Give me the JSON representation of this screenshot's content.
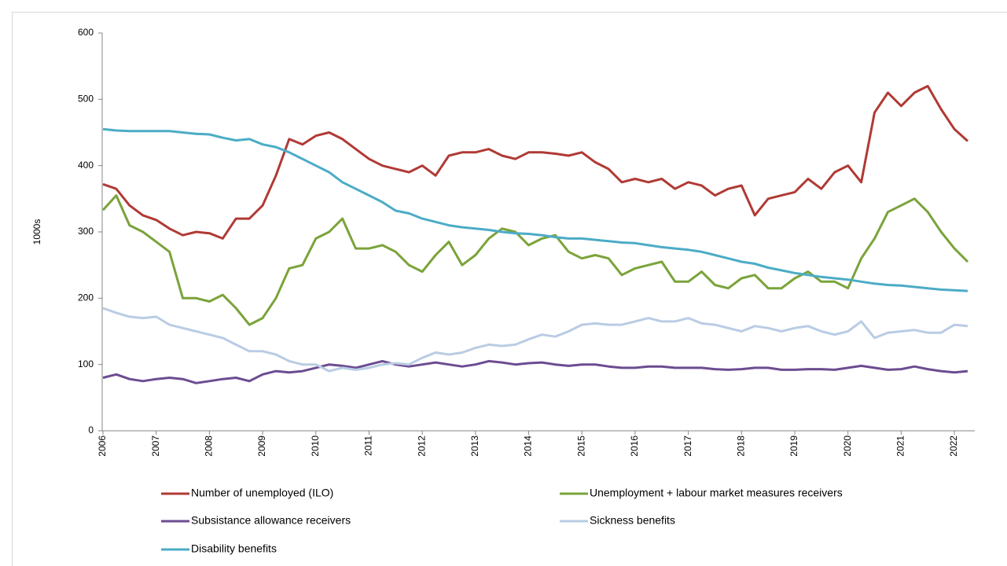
{
  "chart_data": {
    "type": "line",
    "y_label": "1000s",
    "categories": [
      "2006",
      null,
      null,
      null,
      "2007",
      null,
      null,
      null,
      "2008",
      null,
      null,
      null,
      "2009",
      null,
      null,
      null,
      "2010",
      null,
      null,
      null,
      "2011",
      null,
      null,
      null,
      "2012",
      null,
      null,
      null,
      "2013",
      null,
      null,
      null,
      "2014",
      null,
      null,
      null,
      "2015",
      null,
      null,
      null,
      "2016",
      null,
      null,
      null,
      "2017",
      null,
      null,
      null,
      "2018",
      null,
      null,
      null,
      "2019",
      null,
      null,
      null,
      "2020",
      null,
      null,
      null,
      "2021",
      null,
      null,
      null,
      "2022",
      null
    ],
    "series": [
      {
        "name": "Number of unemployed (ILO)",
        "color": "#b03a35",
        "values": [
          372,
          365,
          340,
          325,
          318,
          305,
          295,
          300,
          298,
          290,
          320,
          320,
          340,
          385,
          440,
          432,
          445,
          450,
          440,
          425,
          410,
          400,
          395,
          390,
          400,
          385,
          415,
          420,
          420,
          425,
          415,
          410,
          420,
          420,
          418,
          415,
          420,
          405,
          395,
          375,
          380,
          375,
          380,
          365,
          375,
          370,
          355,
          365,
          370,
          325,
          350,
          355,
          360,
          380,
          365,
          390,
          400,
          375,
          480,
          510,
          490,
          510,
          520,
          485,
          455,
          437
        ]
      },
      {
        "name": "Unemployment + labour market measures receivers",
        "color": "#7aa33a",
        "values": [
          333,
          355,
          310,
          300,
          285,
          270,
          200,
          200,
          195,
          205,
          185,
          160,
          170,
          200,
          245,
          250,
          290,
          300,
          320,
          275,
          275,
          280,
          270,
          250,
          240,
          265,
          285,
          250,
          265,
          290,
          305,
          300,
          280,
          290,
          295,
          270,
          260,
          265,
          260,
          235,
          245,
          250,
          255,
          225,
          225,
          240,
          220,
          215,
          230,
          235,
          215,
          215,
          230,
          240,
          225,
          225,
          215,
          260,
          290,
          330,
          340,
          350,
          330,
          300,
          275,
          255
        ]
      },
      {
        "name": "Subsistance allowance receivers",
        "color": "#6c4c91",
        "values": [
          80,
          85,
          78,
          75,
          78,
          80,
          78,
          72,
          75,
          78,
          80,
          75,
          85,
          90,
          88,
          90,
          95,
          100,
          98,
          95,
          100,
          105,
          100,
          97,
          100,
          103,
          100,
          97,
          100,
          105,
          103,
          100,
          102,
          103,
          100,
          98,
          100,
          100,
          97,
          95,
          95,
          97,
          97,
          95,
          95,
          95,
          93,
          92,
          93,
          95,
          95,
          92,
          92,
          93,
          93,
          92,
          95,
          98,
          95,
          92,
          93,
          97,
          93,
          90,
          88,
          90
        ]
      },
      {
        "name": "Sickness benefits",
        "color": "#b9cce4",
        "values": [
          185,
          178,
          172,
          170,
          172,
          160,
          155,
          150,
          145,
          140,
          130,
          120,
          120,
          115,
          105,
          100,
          100,
          90,
          95,
          92,
          95,
          100,
          102,
          100,
          110,
          118,
          115,
          118,
          125,
          130,
          128,
          130,
          138,
          145,
          142,
          150,
          160,
          162,
          160,
          160,
          165,
          170,
          165,
          165,
          170,
          162,
          160,
          155,
          150,
          158,
          155,
          150,
          155,
          158,
          150,
          145,
          150,
          165,
          140,
          148,
          150,
          152,
          148,
          148,
          160,
          158
        ]
      },
      {
        "name": "Disability benefits",
        "color": "#4bacc6",
        "values": [
          455,
          453,
          452,
          452,
          452,
          452,
          450,
          448,
          447,
          442,
          438,
          440,
          432,
          428,
          420,
          410,
          400,
          390,
          375,
          365,
          355,
          345,
          332,
          328,
          320,
          315,
          310,
          307,
          305,
          303,
          300,
          298,
          297,
          295,
          292,
          290,
          290,
          288,
          286,
          284,
          283,
          280,
          277,
          275,
          273,
          270,
          265,
          260,
          255,
          252,
          246,
          242,
          238,
          235,
          232,
          230,
          228,
          225,
          222,
          220,
          219,
          217,
          215,
          213,
          212,
          211
        ]
      }
    ],
    "ylim": [
      0,
      600
    ],
    "yticks": [
      0,
      100,
      200,
      300,
      400,
      500,
      600
    ],
    "grid": false
  }
}
